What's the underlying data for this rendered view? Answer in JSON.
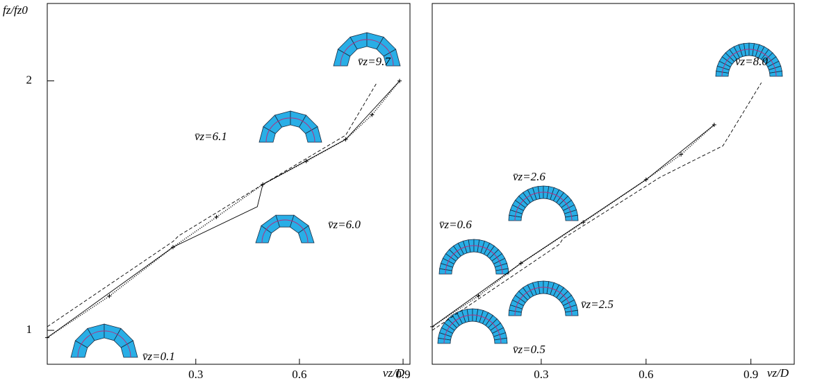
{
  "chart_data": [
    {
      "type": "line",
      "ylabel": "fz/fz0",
      "xlabel": "vz/D",
      "log_y": true,
      "xlim": [
        -0.13,
        0.92
      ],
      "xticks": [
        0.3,
        0.6,
        0.9
      ],
      "ylim": [
        0.91,
        2.48
      ],
      "yticks": [
        1,
        2
      ],
      "series": [
        {
          "style": "dashed",
          "color": "#000000",
          "x": [
            -0.13,
            0.234,
            0.25,
            0.494,
            0.734,
            0.824
          ],
          "values": [
            1.01,
            1.28,
            1.3,
            1.5,
            1.72,
            1.99
          ]
        },
        {
          "style": "markers",
          "color": "#000000",
          "x": [
            -0.13,
            0.05,
            0.234,
            0.36,
            0.494,
            0.62,
            0.734,
            0.81,
            0.89
          ],
          "values": [
            0.98,
            1.1,
            1.26,
            1.37,
            1.5,
            1.6,
            1.7,
            1.82,
            2.0
          ]
        },
        {
          "style": "solid",
          "color": "#000000",
          "x": [
            -0.13,
            0.234,
            0.478,
            0.494,
            0.734,
            0.89
          ],
          "values": [
            0.98,
            1.26,
            1.41,
            1.5,
            1.7,
            2.0
          ]
        }
      ],
      "annotations": [
        "v̄z=0.1",
        "v̄z=6.0",
        "v̄z=6.1",
        "v̄z=9.7"
      ]
    },
    {
      "type": "line",
      "xlabel": "vz/D",
      "log_y": true,
      "xlim": [
        -0.012,
        1.024
      ],
      "xticks": [
        0.3,
        0.6,
        0.9
      ],
      "ylim": [
        0.91,
        2.48
      ],
      "series": [
        {
          "style": "dashed",
          "color": "#000000",
          "x": [
            -0.012,
            0.352,
            0.362,
            0.64,
            0.82,
            0.93
          ],
          "values": [
            1.0,
            1.27,
            1.29,
            1.53,
            1.67,
            1.99
          ]
        },
        {
          "style": "markers",
          "color": "#000000",
          "x": [
            -0.012,
            0.12,
            0.242,
            0.42,
            0.6,
            0.7,
            0.795
          ],
          "values": [
            1.01,
            1.1,
            1.205,
            1.35,
            1.52,
            1.63,
            1.77
          ]
        },
        {
          "style": "solid",
          "color": "#000000",
          "x": [
            -0.012,
            0.242,
            0.6,
            0.795
          ],
          "values": [
            1.01,
            1.205,
            1.52,
            1.77
          ]
        }
      ],
      "annotations": [
        "v̄z=0.5",
        "v̄z=0.6",
        "v̄z=2.5",
        "v̄z=2.6",
        "v̄z=8.0"
      ]
    }
  ]
}
